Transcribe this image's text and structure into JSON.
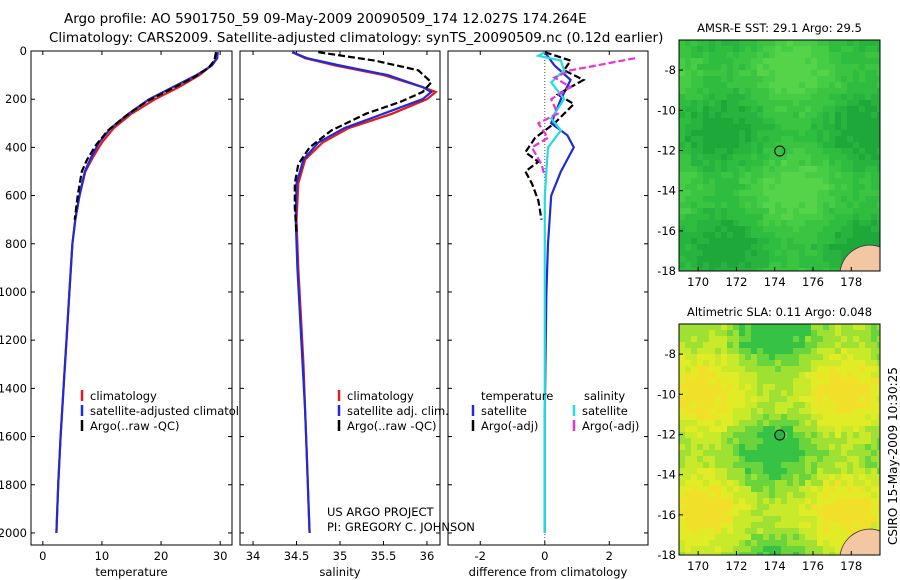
{
  "header": {
    "line1": "Argo profile: AO 5901750_59 09-May-2009 20090509_174 12.027S 174.264E",
    "line2": "Climatology: CARS2009. Satellite-adjusted climatology: synTS_20090509.nc (0.12d earlier)"
  },
  "colors": {
    "climatology": "#e41a1c",
    "satellite": "#1f2bd9",
    "argo": "#000000",
    "sal_satellite": "#22dde0",
    "sal_argo": "#e632d6"
  },
  "credits": {
    "project": "US ARGO PROJECT",
    "pi": "PI: GREGORY C. JOHNSON"
  },
  "sidebar_stamp": "CSIRO 15-May-2009 10:30:25",
  "chart_data": [
    {
      "id": "temperature",
      "type": "line",
      "xlabel": "temperature",
      "ylabel": "",
      "xlim": [
        -2,
        32
      ],
      "ylim": [
        2050,
        0
      ],
      "xticks": [
        0,
        10,
        20,
        30
      ],
      "yticks": [
        0,
        200,
        400,
        600,
        800,
        1000,
        1200,
        1400,
        1600,
        1800,
        2000
      ],
      "legend": [
        "climatology",
        "satellite-adjusted climatology",
        "Argo(..raw -QC)"
      ],
      "series": [
        {
          "name": "climatology",
          "style": "solid",
          "color": "#e41a1c",
          "points": [
            [
              29.6,
              5
            ],
            [
              29.4,
              30
            ],
            [
              28.5,
              60
            ],
            [
              26.5,
              100
            ],
            [
              23,
              150
            ],
            [
              19,
              200
            ],
            [
              15,
              260
            ],
            [
              12,
              320
            ],
            [
              10,
              380
            ],
            [
              8.5,
              440
            ],
            [
              7.2,
              500
            ],
            [
              6.2,
              600
            ],
            [
              5.5,
              700
            ],
            [
              5,
              800
            ],
            [
              4.5,
              1000
            ],
            [
              4,
              1200
            ],
            [
              3.5,
              1400
            ],
            [
              3,
              1600
            ],
            [
              2.6,
              1800
            ],
            [
              2.3,
              2000
            ]
          ]
        },
        {
          "name": "satellite",
          "style": "solid",
          "color": "#1f2bd9",
          "points": [
            [
              29.6,
              5
            ],
            [
              29.5,
              30
            ],
            [
              28.6,
              60
            ],
            [
              26,
              100
            ],
            [
              22,
              150
            ],
            [
              18,
              200
            ],
            [
              14.5,
              260
            ],
            [
              11.5,
              320
            ],
            [
              9.5,
              380
            ],
            [
              8.2,
              440
            ],
            [
              7.1,
              500
            ],
            [
              6.2,
              600
            ],
            [
              5.5,
              700
            ],
            [
              5,
              800
            ],
            [
              4.5,
              1000
            ],
            [
              4,
              1200
            ],
            [
              3.5,
              1400
            ],
            [
              3,
              1600
            ],
            [
              2.6,
              1800
            ],
            [
              2.3,
              2000
            ]
          ]
        },
        {
          "name": "Argo",
          "style": "dashed",
          "color": "#000000",
          "points": [
            [
              29.3,
              5
            ],
            [
              29,
              40
            ],
            [
              28,
              70
            ],
            [
              25.5,
              110
            ],
            [
              21.5,
              160
            ],
            [
              17.5,
              210
            ],
            [
              14,
              270
            ],
            [
              11,
              330
            ],
            [
              9,
              390
            ],
            [
              7.5,
              450
            ],
            [
              6.6,
              500
            ],
            [
              5.9,
              600
            ],
            [
              5.4,
              700
            ]
          ]
        }
      ]
    },
    {
      "id": "salinity",
      "type": "line",
      "xlabel": "salinity",
      "ylabel": "",
      "xlim": [
        33.85,
        36.15
      ],
      "ylim": [
        2050,
        0
      ],
      "xticks": [
        34,
        34.5,
        35,
        35.5,
        36
      ],
      "xticklabels": [
        "34",
        "34.5",
        "35",
        "35.5",
        "36"
      ],
      "legend": [
        "climatology",
        "satellite adj. clim.",
        "Argo(..raw -QC)"
      ],
      "series": [
        {
          "name": "climatology",
          "style": "solid",
          "color": "#e41a1c",
          "points": [
            [
              34.45,
              5
            ],
            [
              34.6,
              30
            ],
            [
              34.95,
              60
            ],
            [
              35.5,
              100
            ],
            [
              35.95,
              150
            ],
            [
              36.1,
              170
            ],
            [
              36.0,
              200
            ],
            [
              35.6,
              260
            ],
            [
              35.1,
              320
            ],
            [
              34.8,
              380
            ],
            [
              34.6,
              450
            ],
            [
              34.52,
              550
            ],
            [
              34.5,
              700
            ],
            [
              34.52,
              900
            ],
            [
              34.55,
              1100
            ],
            [
              34.58,
              1300
            ],
            [
              34.6,
              1500
            ],
            [
              34.62,
              1700
            ],
            [
              34.64,
              1900
            ],
            [
              34.65,
              2000
            ]
          ]
        },
        {
          "name": "satellite",
          "style": "solid",
          "color": "#1f2bd9",
          "points": [
            [
              34.45,
              5
            ],
            [
              34.62,
              30
            ],
            [
              35,
              60
            ],
            [
              35.55,
              100
            ],
            [
              35.95,
              150
            ],
            [
              36.05,
              170
            ],
            [
              35.95,
              200
            ],
            [
              35.5,
              260
            ],
            [
              35.05,
              320
            ],
            [
              34.75,
              380
            ],
            [
              34.58,
              450
            ],
            [
              34.5,
              550
            ],
            [
              34.49,
              700
            ],
            [
              34.51,
              900
            ],
            [
              34.54,
              1100
            ],
            [
              34.57,
              1300
            ],
            [
              34.6,
              1500
            ],
            [
              34.62,
              1700
            ],
            [
              34.64,
              1900
            ],
            [
              34.65,
              2000
            ]
          ]
        },
        {
          "name": "Argo",
          "style": "dashed",
          "color": "#000000",
          "points": [
            [
              34.75,
              5
            ],
            [
              35.4,
              40
            ],
            [
              35.9,
              80
            ],
            [
              36.05,
              130
            ],
            [
              35.95,
              170
            ],
            [
              35.7,
              210
            ],
            [
              35.3,
              260
            ],
            [
              34.9,
              330
            ],
            [
              34.65,
              400
            ],
            [
              34.52,
              470
            ],
            [
              34.48,
              550
            ],
            [
              34.48,
              650
            ],
            [
              34.5,
              750
            ]
          ]
        }
      ]
    },
    {
      "id": "difference",
      "type": "line",
      "xlabel": "difference from climatology",
      "ylabel": "",
      "xlim": [
        -3,
        3.2
      ],
      "ylim": [
        2050,
        0
      ],
      "xticks": [
        -2,
        0,
        2
      ],
      "legend_left_header": "temperature",
      "legend_right_header": "salinity",
      "legend": [
        "satellite",
        "Argo(-adj)",
        "satellite",
        "Argo(-adj)"
      ],
      "series": [
        {
          "name": "temperature satellite",
          "style": "solid",
          "color": "#1f2bd9",
          "points": [
            [
              0,
              5
            ],
            [
              0.3,
              60
            ],
            [
              0.8,
              120
            ],
            [
              0.5,
              200
            ],
            [
              0.2,
              300
            ],
            [
              0.7,
              350
            ],
            [
              0.9,
              400
            ],
            [
              0.5,
              500
            ],
            [
              0.2,
              600
            ],
            [
              0.1,
              800
            ],
            [
              0.05,
              1000
            ],
            [
              0,
              1500
            ],
            [
              0,
              2000
            ]
          ]
        },
        {
          "name": "temperature Argo",
          "style": "dashed",
          "color": "#000000",
          "points": [
            [
              0,
              5
            ],
            [
              0.8,
              40
            ],
            [
              0.6,
              80
            ],
            [
              1.2,
              120
            ],
            [
              0.4,
              180
            ],
            [
              0.9,
              220
            ],
            [
              0.3,
              300
            ],
            [
              -0.3,
              360
            ],
            [
              -0.6,
              420
            ],
            [
              -0.2,
              460
            ],
            [
              -0.6,
              500
            ],
            [
              -0.4,
              550
            ],
            [
              -0.2,
              620
            ],
            [
              -0.1,
              700
            ]
          ]
        },
        {
          "name": "salinity satellite",
          "style": "solid",
          "color": "#22dde0",
          "points": [
            [
              0,
              5
            ],
            [
              -0.2,
              20
            ],
            [
              0.5,
              40
            ],
            [
              0.6,
              80
            ],
            [
              0.2,
              130
            ],
            [
              0.6,
              200
            ],
            [
              0.2,
              280
            ],
            [
              0.5,
              330
            ],
            [
              0.1,
              400
            ],
            [
              0,
              600
            ],
            [
              0,
              1000
            ],
            [
              0,
              2000
            ]
          ]
        },
        {
          "name": "salinity Argo",
          "style": "dashed",
          "color": "#e632d6",
          "points": [
            [
              2.8,
              30
            ],
            [
              2.0,
              50
            ],
            [
              1.6,
              60
            ],
            [
              0.8,
              80
            ],
            [
              0.3,
              110
            ],
            [
              0.8,
              150
            ],
            [
              0.2,
              200
            ],
            [
              0.4,
              260
            ],
            [
              -0.2,
              300
            ],
            [
              0.1,
              360
            ],
            [
              -0.4,
              400
            ],
            [
              -0.1,
              470
            ],
            [
              0,
              520
            ]
          ]
        }
      ]
    },
    {
      "id": "sst_map",
      "type": "heatmap",
      "title": "AMSR-E SST: 29.1  Argo: 29.5",
      "xlim": [
        169,
        179.5
      ],
      "ylim": [
        -18,
        -6.5
      ],
      "xticks": [
        170,
        172,
        174,
        176,
        178
      ],
      "yticks": [
        -8,
        -10,
        -12,
        -14,
        -16,
        -18
      ],
      "marker": {
        "lon": 174.264,
        "lat": -12.027,
        "filled": false
      },
      "field": "sea surface temperature (mostly green, ~29)"
    },
    {
      "id": "sla_map",
      "type": "heatmap",
      "title": "Altimetric SLA: 0.11  Argo: 0.048",
      "xlim": [
        169,
        179.5
      ],
      "ylim": [
        -18,
        -6.5
      ],
      "xticks": [
        170,
        172,
        174,
        176,
        178
      ],
      "yticks": [
        -8,
        -10,
        -12,
        -14,
        -16,
        -18
      ],
      "marker": {
        "lon": 174.264,
        "lat": -12.027,
        "filled": true
      },
      "field": "sea level anomaly (yellow-green)"
    }
  ]
}
